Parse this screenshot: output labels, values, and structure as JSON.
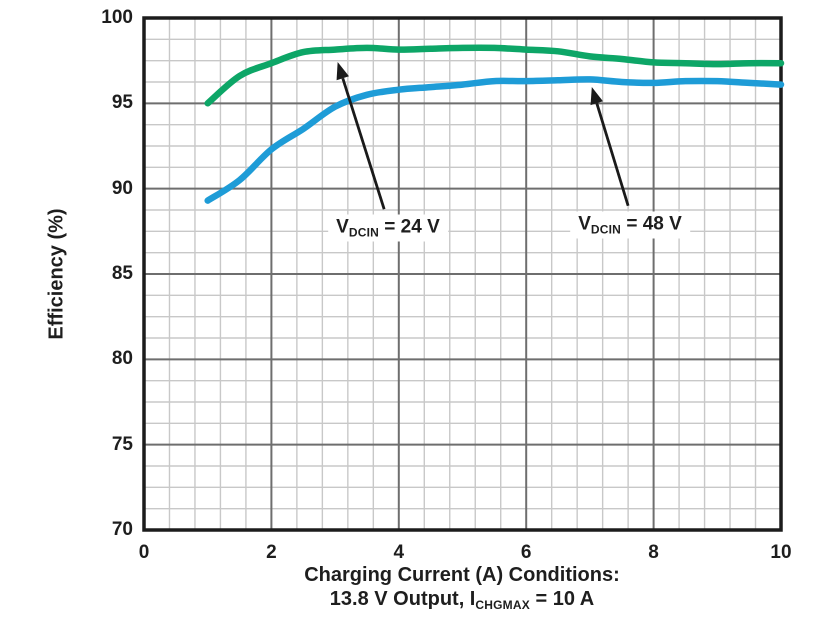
{
  "colors": {
    "background": "#ffffff",
    "grid_minor": "#c8c8c8",
    "grid_major": "#6e6e6e",
    "frame": "#1c1c1c",
    "text": "#1e1e1e",
    "arrow": "#1a1a1a",
    "series_24v": "#0DA667",
    "series_48v": "#1E9CD7"
  },
  "chart_data": {
    "type": "line",
    "title": "",
    "ylabel": "Efficiency (%)",
    "xlabel_line1": "Charging Current (A) Conditions:",
    "xlabel_line2": {
      "pre": "13.8 V Output, I",
      "sub": "CHGMAX",
      "post": " = 10 A"
    },
    "xlim": [
      0,
      10
    ],
    "ylim": [
      70,
      100
    ],
    "x_major_ticks": [
      0,
      2,
      4,
      6,
      8,
      10
    ],
    "y_major_ticks": [
      70,
      75,
      80,
      85,
      90,
      95,
      100
    ],
    "x_minor_step": 0.4,
    "y_minor_step": 1.25,
    "grid": true,
    "legend_position": "none (inline annotations with arrows)",
    "x": [
      1,
      1.5,
      2,
      2.5,
      3,
      3.5,
      4,
      4.5,
      5,
      5.5,
      6,
      6.5,
      7,
      7.5,
      8,
      8.5,
      9,
      9.5,
      10
    ],
    "series": [
      {
        "name": "VDCIN = 24 V",
        "color": "#0DA667",
        "values": [
          95.0,
          96.6,
          97.35,
          98.0,
          98.15,
          98.25,
          98.15,
          98.2,
          98.25,
          98.25,
          98.15,
          98.05,
          97.75,
          97.6,
          97.4,
          97.35,
          97.3,
          97.35,
          97.35
        ]
      },
      {
        "name": "VDCIN = 48 V",
        "color": "#1E9CD7",
        "values": [
          89.3,
          90.5,
          92.3,
          93.5,
          94.8,
          95.5,
          95.8,
          95.95,
          96.1,
          96.3,
          96.3,
          96.35,
          96.4,
          96.25,
          96.2,
          96.3,
          96.3,
          96.2,
          96.1
        ]
      }
    ],
    "annotations": [
      {
        "label": {
          "pre": "V",
          "sub": "DCIN",
          "post": " = 24 V"
        },
        "label_at": [
          3.83,
          87.7
        ],
        "arrow_from": [
          3.77,
          88.8
        ],
        "arrow_to": [
          3.04,
          97.42
        ]
      },
      {
        "label": {
          "pre": "V",
          "sub": "DCIN",
          "post": " = 48 V"
        },
        "label_at": [
          7.63,
          87.87
        ],
        "arrow_from": [
          7.6,
          89.0
        ],
        "arrow_to": [
          7.03,
          95.96
        ]
      }
    ]
  }
}
